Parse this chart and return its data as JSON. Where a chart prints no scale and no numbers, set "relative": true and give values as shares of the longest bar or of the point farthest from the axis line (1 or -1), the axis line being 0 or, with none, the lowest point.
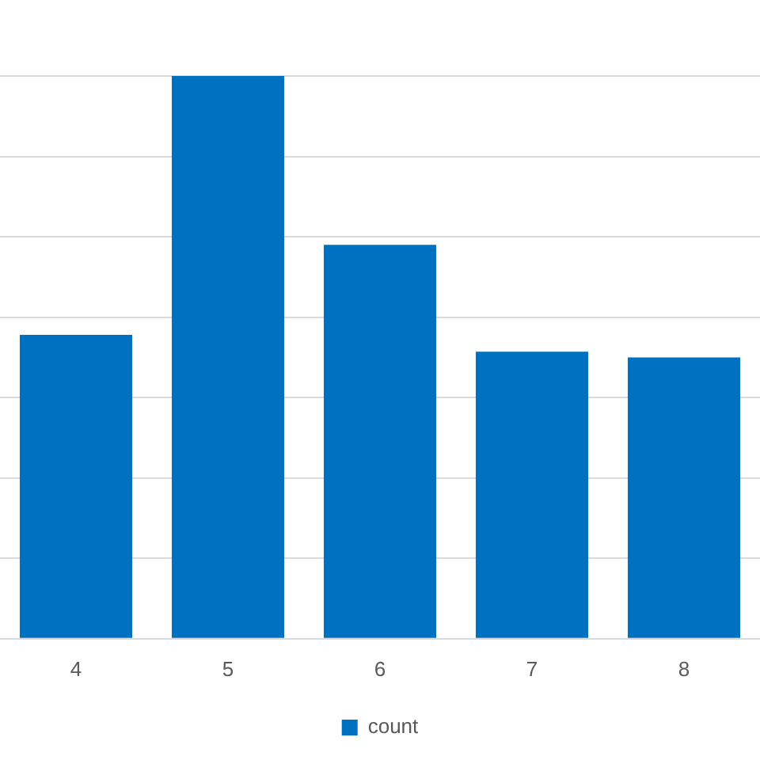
{
  "chart_data": {
    "type": "bar",
    "relative": true,
    "categories": [
      "4",
      "5",
      "6",
      "7",
      "8"
    ],
    "series": [
      {
        "name": "count",
        "color": "#0070c0",
        "values": [
          0.54,
          1,
          0.7,
          0.51,
          0.5
        ]
      }
    ],
    "grid": "y",
    "legend": "bottom"
  }
}
